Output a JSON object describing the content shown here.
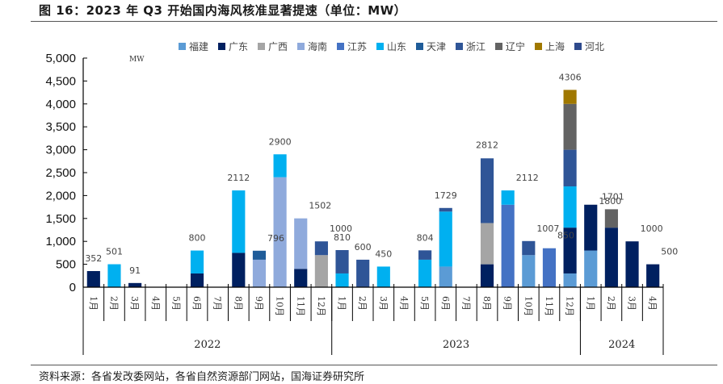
{
  "header": {
    "title": "图 16：2023 年 Q3 开始国内海风核准显著提速（单位：MW）"
  },
  "footer": {
    "source": "资料来源：各省发改委网站，各省自然资源部门网站，国海证券研究所"
  },
  "chart_data": {
    "type": "bar",
    "stacked": true,
    "title": "2023 年 Q3 开始国内海风核准显著提速",
    "unit_label": "MW",
    "xlabel": "",
    "ylabel": "MW",
    "ylim": [
      0,
      5000
    ],
    "yticks": [
      0,
      500,
      1000,
      1500,
      2000,
      2500,
      3000,
      3500,
      4000,
      4500,
      5000
    ],
    "ytick_labels": [
      "0",
      "500",
      "1,000",
      "1,500",
      "2,000",
      "2,500",
      "3,000",
      "3,500",
      "4,000",
      "4,500",
      "5,000"
    ],
    "grid": false,
    "legend_position": "top",
    "categories": [
      "1月",
      "2月",
      "3月",
      "4月",
      "5月",
      "6月",
      "7月",
      "8月",
      "9月",
      "10月",
      "11月",
      "12月",
      "1月",
      "2月",
      "3月",
      "4月",
      "5月",
      "6月",
      "7月",
      "8月",
      "9月",
      "10月",
      "11月",
      "12月",
      "1月",
      "2月",
      "3月",
      "4月"
    ],
    "year_groups": [
      {
        "label": "2022",
        "count": 12
      },
      {
        "label": "2023",
        "count": 12
      },
      {
        "label": "2024",
        "count": 4
      }
    ],
    "totals": [
      352,
      501,
      91,
      null,
      null,
      800,
      null,
      2112,
      796,
      2900,
      1502,
      1000,
      810,
      600,
      450,
      null,
      804,
      1729,
      null,
      2812,
      2112,
      1007,
      850,
      4306,
      1800,
      1701,
      1000,
      500
    ],
    "series": [
      {
        "name": "福建",
        "color": "#5B9BD5",
        "values": [
          0,
          0,
          0,
          0,
          0,
          0,
          0,
          0,
          0,
          0,
          0,
          0,
          0,
          0,
          0,
          0,
          0,
          450,
          0,
          0,
          0,
          700,
          0,
          300,
          800,
          0,
          0,
          0
        ]
      },
      {
        "name": "广东",
        "color": "#002060",
        "values": [
          352,
          0,
          91,
          0,
          0,
          300,
          0,
          750,
          0,
          0,
          400,
          0,
          0,
          0,
          0,
          0,
          0,
          0,
          0,
          500,
          0,
          0,
          0,
          1000,
          1000,
          1300,
          1000,
          500
        ]
      },
      {
        "name": "广西",
        "color": "#A5A5A5",
        "values": [
          0,
          0,
          0,
          0,
          0,
          0,
          0,
          0,
          0,
          0,
          0,
          700,
          0,
          0,
          0,
          0,
          0,
          0,
          0,
          900,
          0,
          0,
          0,
          0,
          0,
          0,
          0,
          0
        ]
      },
      {
        "name": "海南",
        "color": "#8FAADC",
        "values": [
          0,
          0,
          0,
          0,
          0,
          0,
          0,
          0,
          600,
          2400,
          1102,
          0,
          0,
          0,
          0,
          0,
          0,
          0,
          0,
          0,
          0,
          0,
          0,
          0,
          0,
          0,
          0,
          0
        ]
      },
      {
        "name": "江苏",
        "color": "#4472C4",
        "values": [
          0,
          0,
          0,
          0,
          0,
          0,
          0,
          0,
          0,
          0,
          0,
          0,
          0,
          0,
          0,
          0,
          0,
          0,
          0,
          0,
          1800,
          0,
          850,
          0,
          0,
          0,
          0,
          0
        ]
      },
      {
        "name": "山东",
        "color": "#00B0F0",
        "values": [
          0,
          501,
          0,
          0,
          0,
          500,
          0,
          1362,
          0,
          500,
          0,
          0,
          300,
          0,
          450,
          0,
          600,
          1200,
          0,
          0,
          312,
          0,
          0,
          900,
          0,
          0,
          0,
          0
        ]
      },
      {
        "name": "天津",
        "color": "#1F5C99",
        "values": [
          0,
          0,
          0,
          0,
          0,
          0,
          0,
          0,
          196,
          0,
          0,
          0,
          0,
          0,
          0,
          0,
          0,
          0,
          0,
          0,
          0,
          0,
          0,
          0,
          0,
          0,
          0,
          0
        ]
      },
      {
        "name": "浙江",
        "color": "#2F5597",
        "values": [
          0,
          0,
          0,
          0,
          0,
          0,
          0,
          0,
          0,
          0,
          0,
          300,
          510,
          600,
          0,
          0,
          204,
          79,
          0,
          1412,
          0,
          307,
          0,
          800,
          0,
          0,
          0,
          0
        ]
      },
      {
        "name": "辽宁",
        "color": "#636363",
        "values": [
          0,
          0,
          0,
          0,
          0,
          0,
          0,
          0,
          0,
          0,
          0,
          0,
          0,
          0,
          0,
          0,
          0,
          0,
          0,
          0,
          0,
          0,
          0,
          1000,
          0,
          401,
          0,
          0
        ]
      },
      {
        "name": "上海",
        "color": "#A07800",
        "values": [
          0,
          0,
          0,
          0,
          0,
          0,
          0,
          0,
          0,
          0,
          0,
          0,
          0,
          0,
          0,
          0,
          0,
          0,
          0,
          0,
          0,
          0,
          0,
          306,
          0,
          0,
          0,
          0
        ]
      },
      {
        "name": "河北",
        "color": "#2E4A8C",
        "values": [
          0,
          0,
          0,
          0,
          0,
          0,
          0,
          0,
          0,
          0,
          0,
          0,
          0,
          0,
          0,
          0,
          0,
          0,
          0,
          0,
          0,
          0,
          0,
          0,
          0,
          0,
          0,
          0
        ]
      }
    ]
  }
}
